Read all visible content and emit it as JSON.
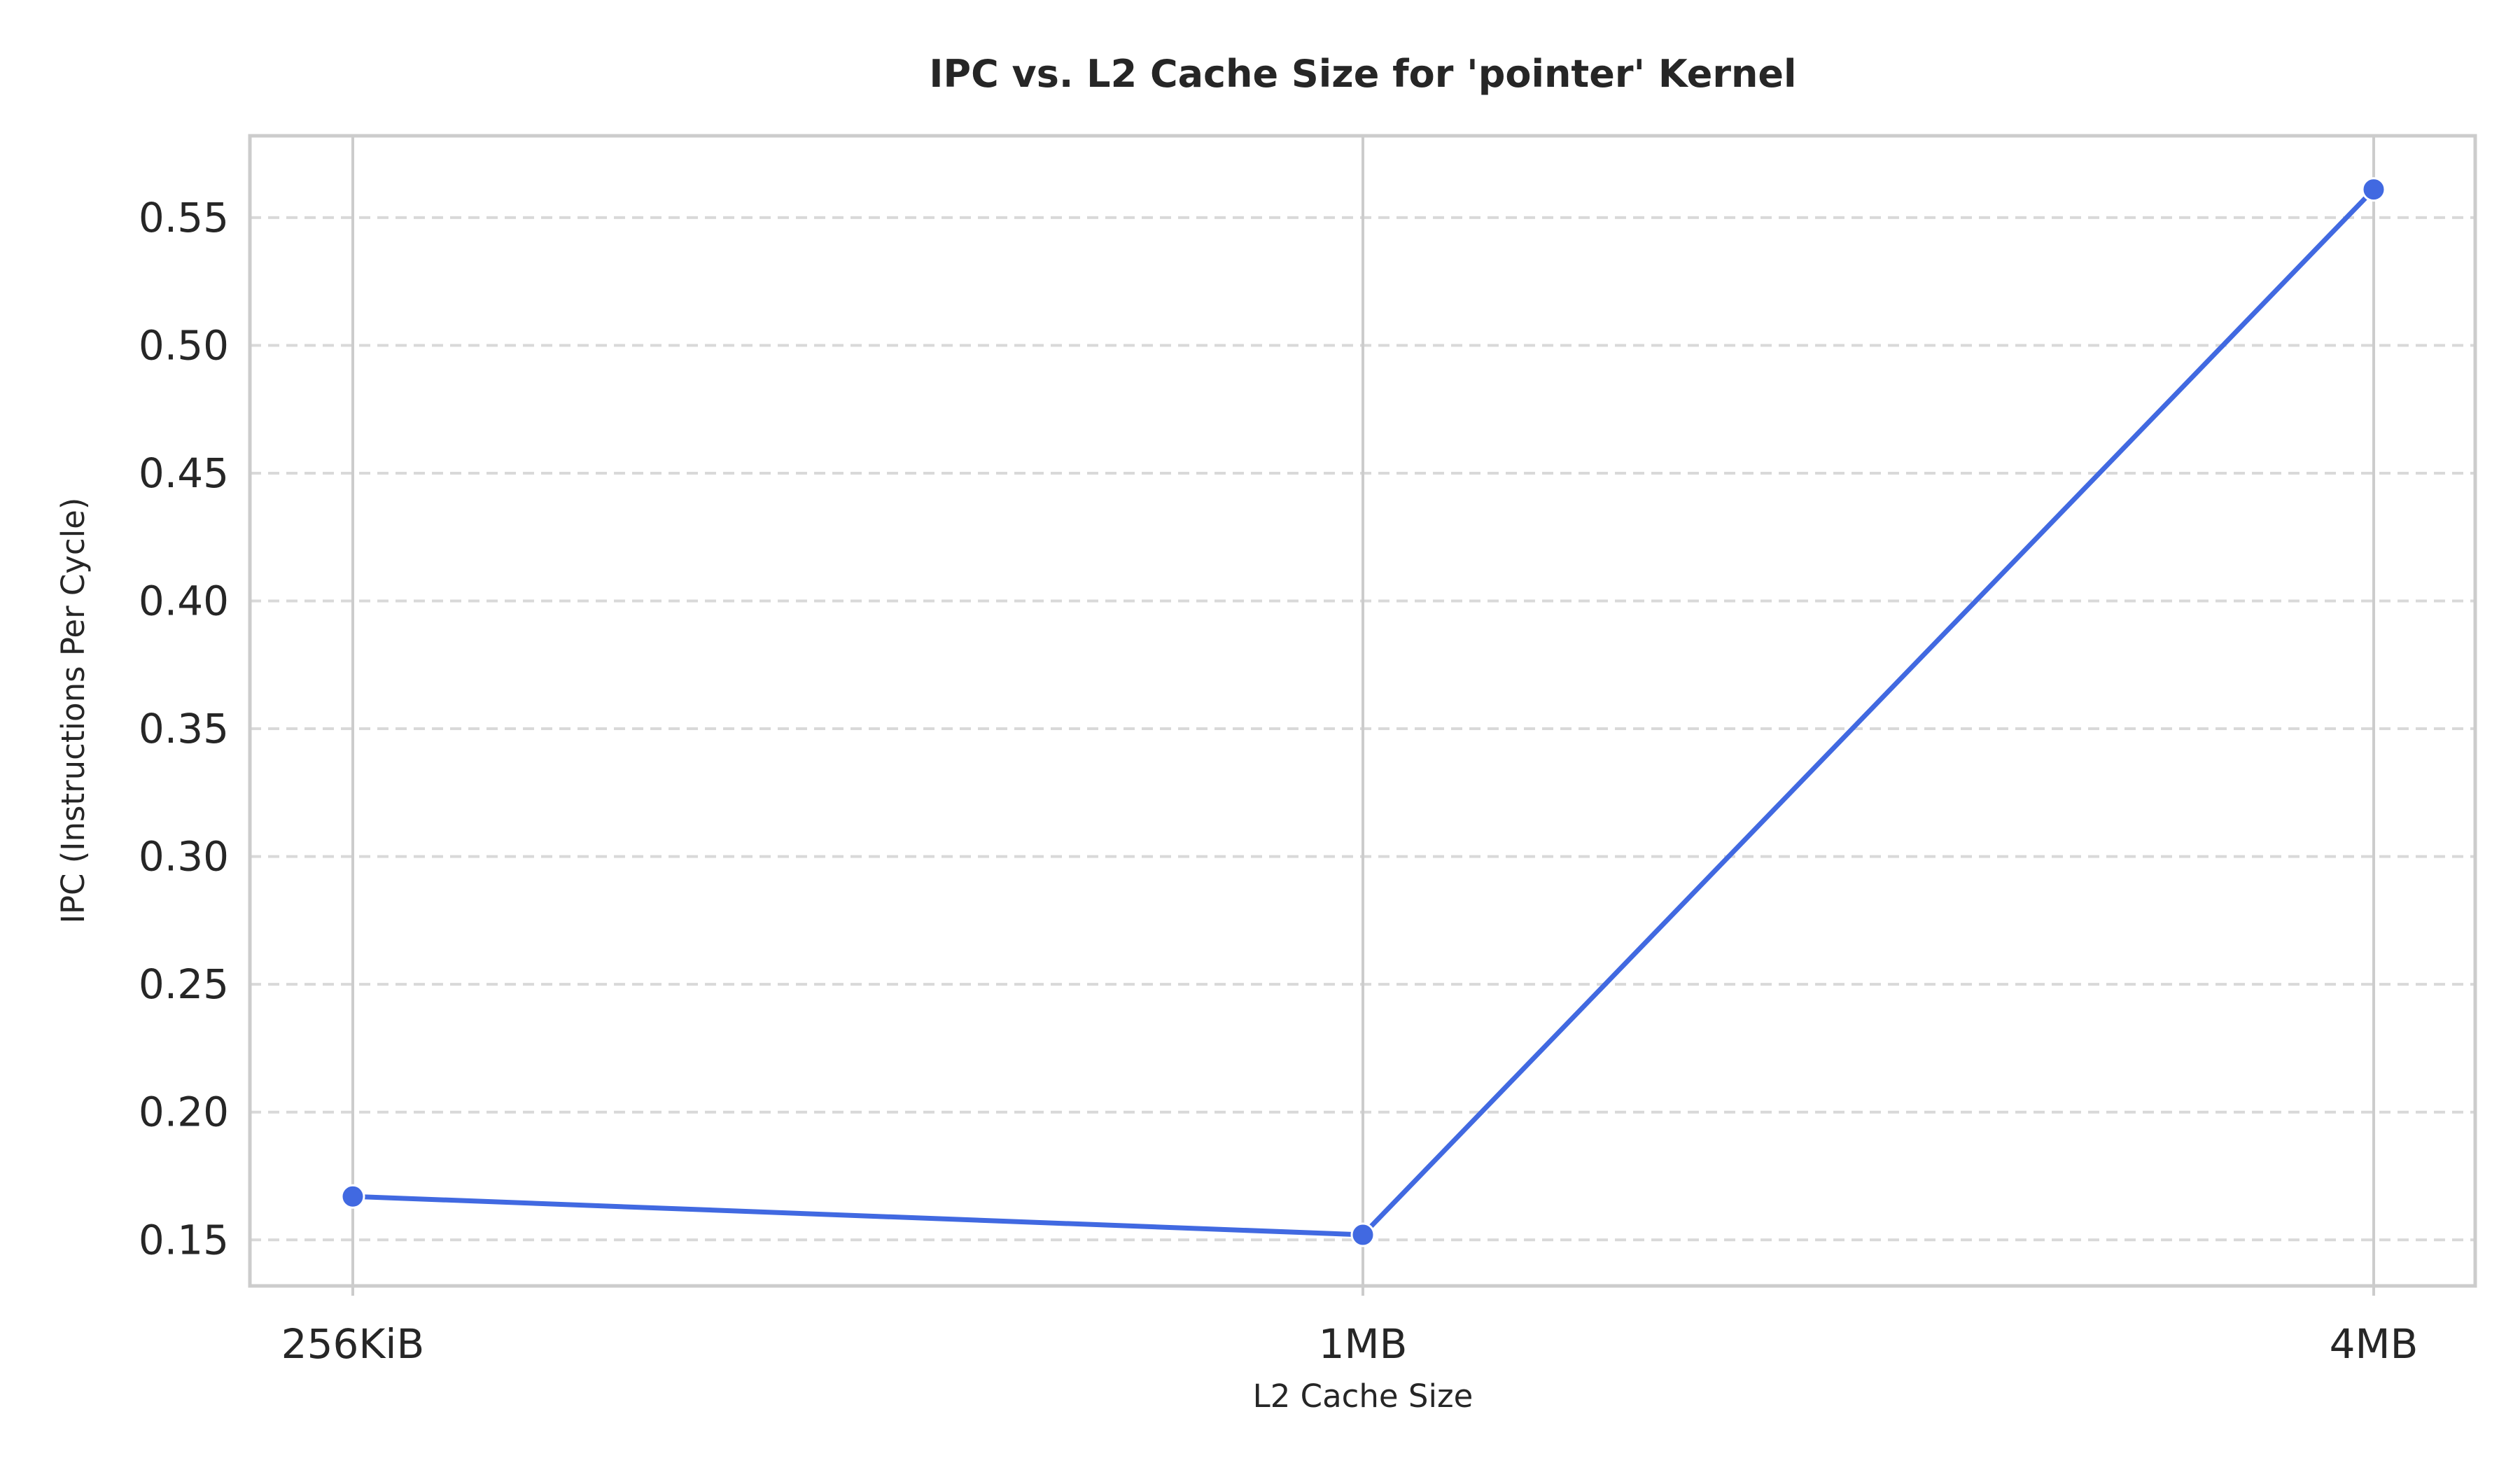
{
  "chart_data": {
    "type": "line",
    "title": "IPC vs. L2 Cache Size for 'pointer' Kernel",
    "xlabel": "L2 Cache Size",
    "ylabel": "IPC (Instructions Per Cycle)",
    "categories": [
      "256KiB",
      "1MB",
      "4MB"
    ],
    "series": [
      {
        "values": [
          0.167,
          0.152,
          0.561
        ],
        "color": "#4169e1"
      }
    ],
    "ylim": [
      0.132,
      0.582
    ],
    "yticks": [
      0.15,
      0.2,
      0.25,
      0.3,
      0.35,
      0.4,
      0.45,
      0.5,
      0.55
    ],
    "ytick_labels": [
      "0.15",
      "0.20",
      "0.25",
      "0.30",
      "0.35",
      "0.40",
      "0.45",
      "0.50",
      "0.55"
    ],
    "grid": {
      "horizontal": "dashed",
      "vertical": "solid"
    },
    "legend": "none"
  }
}
